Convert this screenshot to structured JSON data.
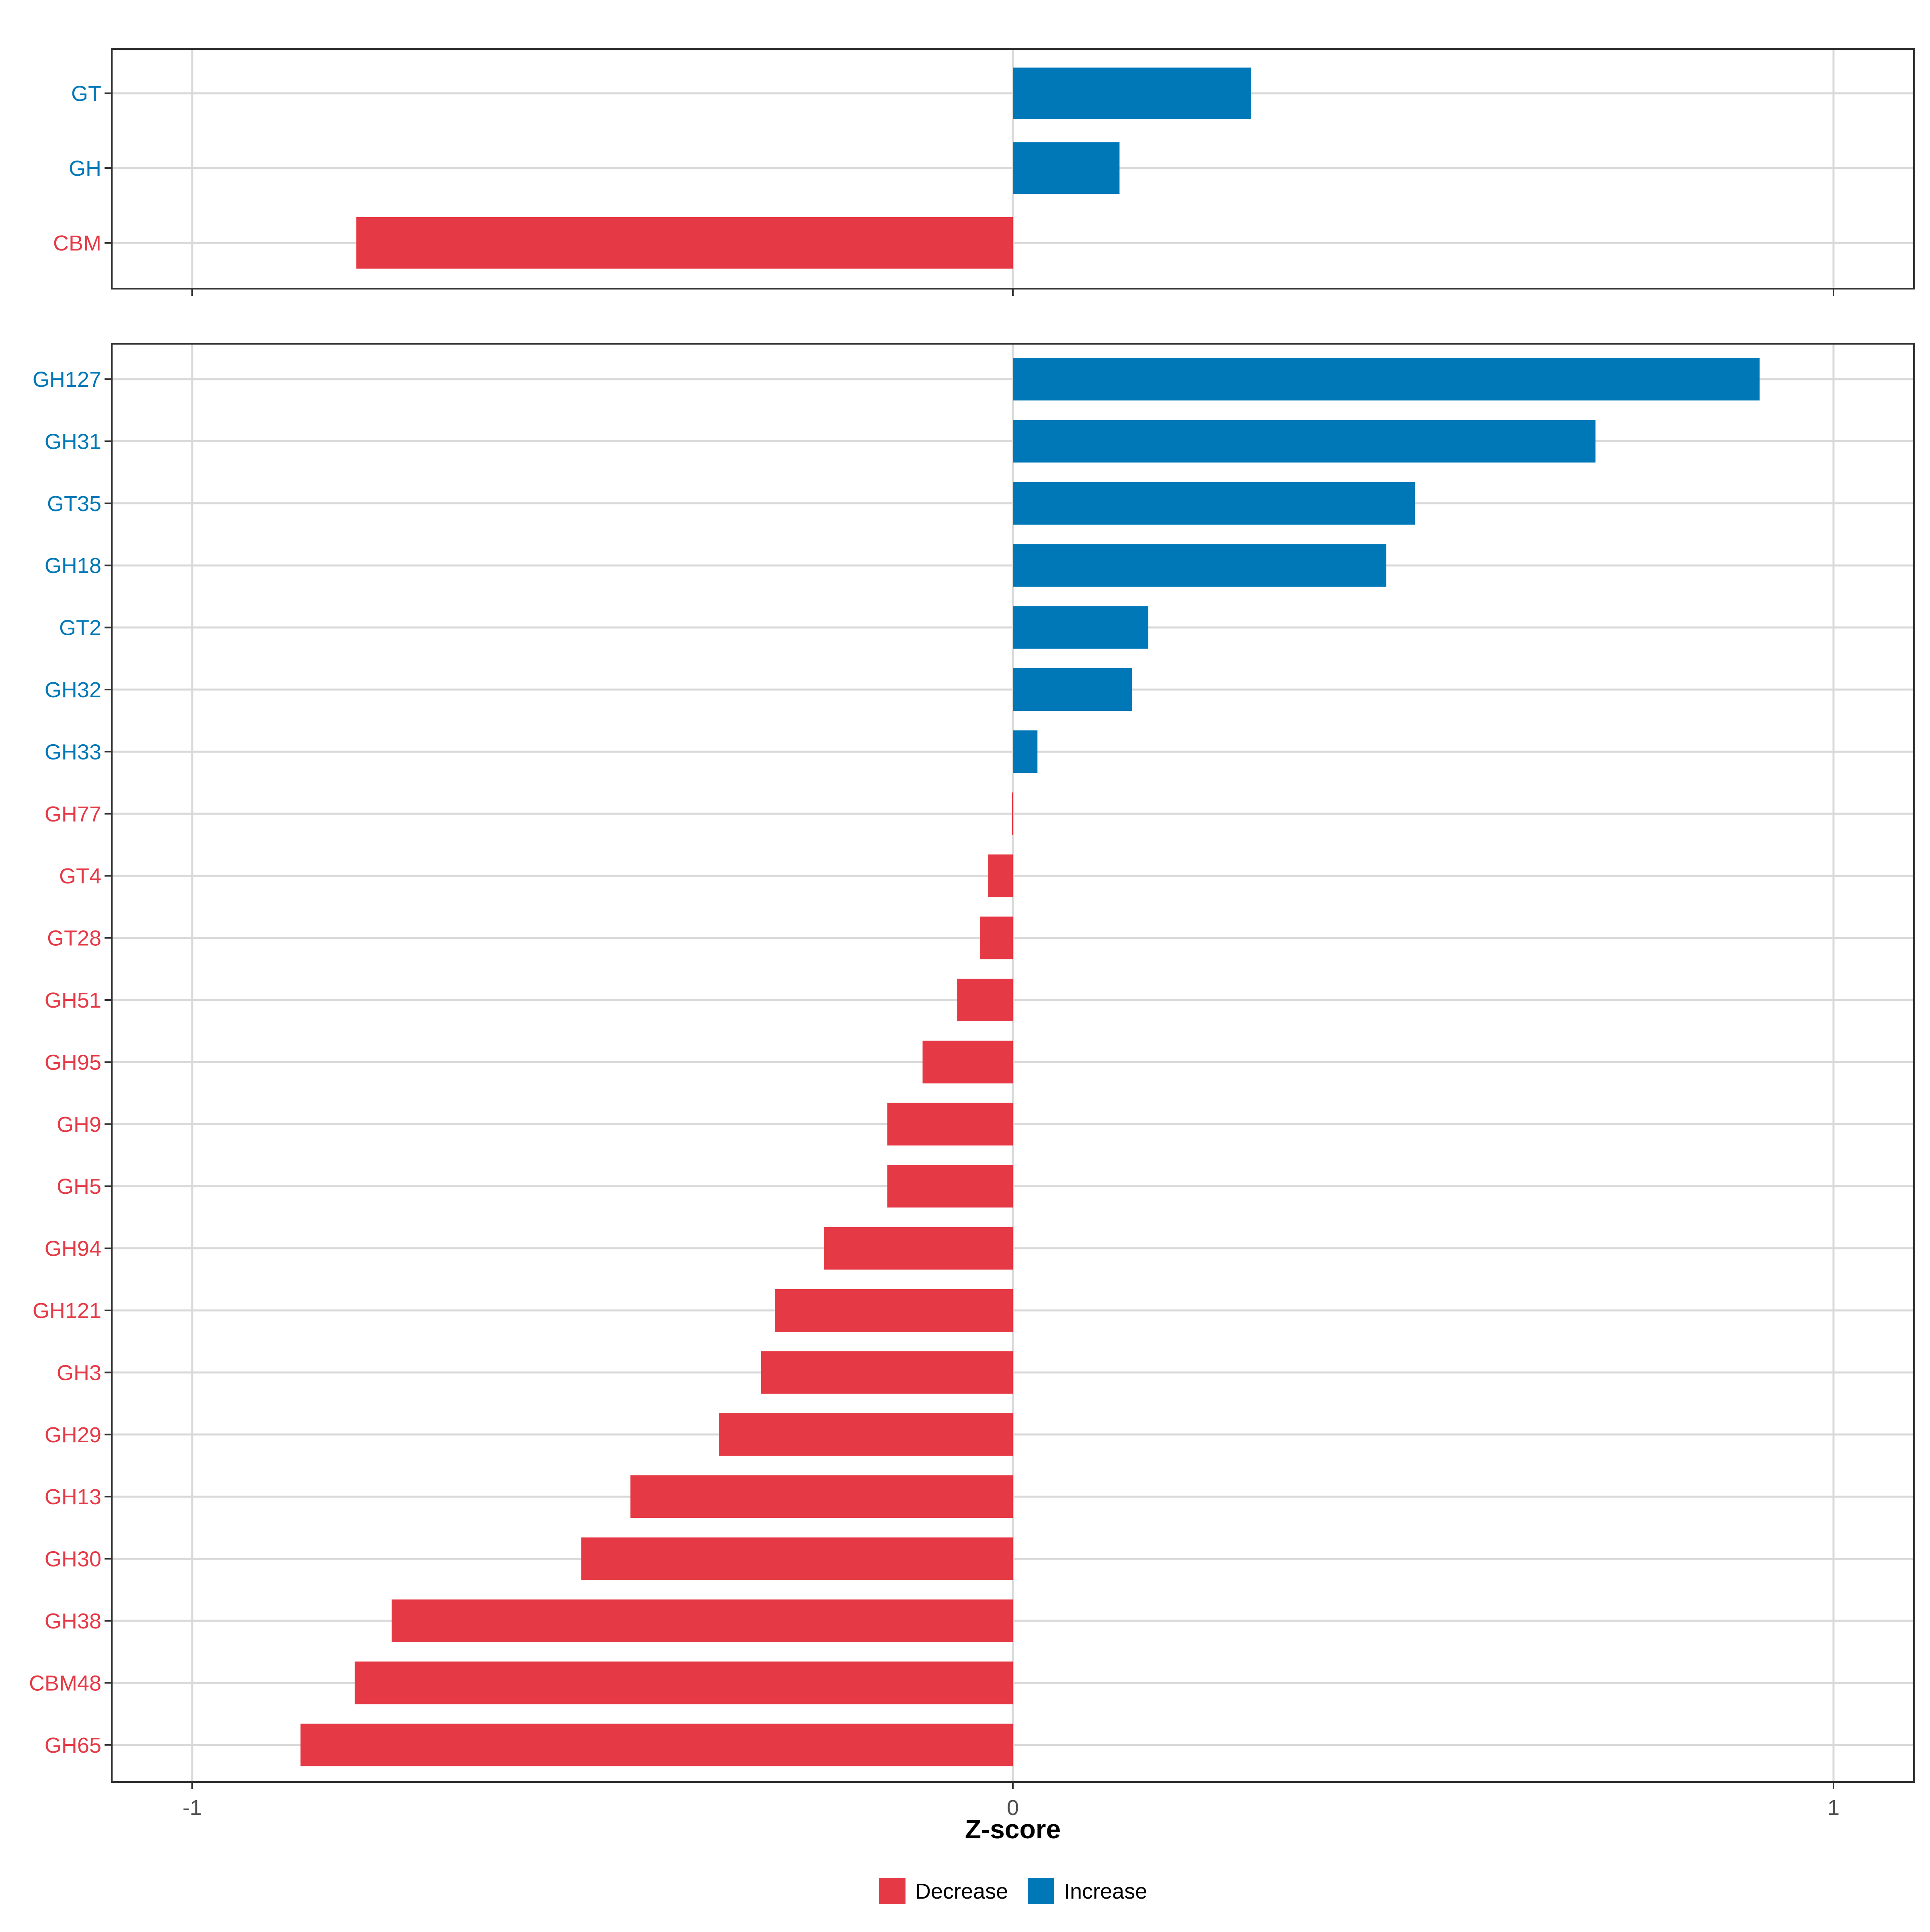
{
  "colors": {
    "decrease": "#e63946",
    "increase": "#0077b6"
  },
  "chart_data": [
    {
      "type": "bar",
      "orientation": "horizontal",
      "panel": "top",
      "categories": [
        "GT",
        "GH",
        "CBM"
      ],
      "values": [
        0.29,
        0.13,
        -0.8
      ],
      "xlim": [
        -1,
        1
      ],
      "xticks": [
        -1,
        0,
        1
      ],
      "show_tick_labels": false,
      "grid": true
    },
    {
      "type": "bar",
      "orientation": "horizontal",
      "panel": "bottom",
      "categories": [
        "GH127",
        "GH31",
        "GT35",
        "GH18",
        "GT2",
        "GH32",
        "GH33",
        "GH77",
        "GT4",
        "GT28",
        "GH51",
        "GH95",
        "GH9",
        "GH5",
        "GH94",
        "GH121",
        "GH3",
        "GH29",
        "GH13",
        "GH30",
        "GH38",
        "CBM48",
        "GH65"
      ],
      "values": [
        0.91,
        0.71,
        0.49,
        0.455,
        0.165,
        0.145,
        0.03,
        -0.001,
        -0.03,
        -0.04,
        -0.068,
        -0.11,
        -0.153,
        -0.153,
        -0.23,
        -0.29,
        -0.307,
        -0.358,
        -0.466,
        -0.526,
        -0.757,
        -0.802,
        -0.868
      ],
      "xlim": [
        -1,
        1
      ],
      "xticks": [
        -1,
        0,
        1
      ],
      "tick_labels": [
        "-1",
        "0",
        "1"
      ],
      "xlabel": "Z-score",
      "grid": true
    }
  ],
  "legend": {
    "position": "bottom",
    "items": [
      {
        "label": "Decrease",
        "key": "decrease"
      },
      {
        "label": "Increase",
        "key": "increase"
      }
    ]
  }
}
